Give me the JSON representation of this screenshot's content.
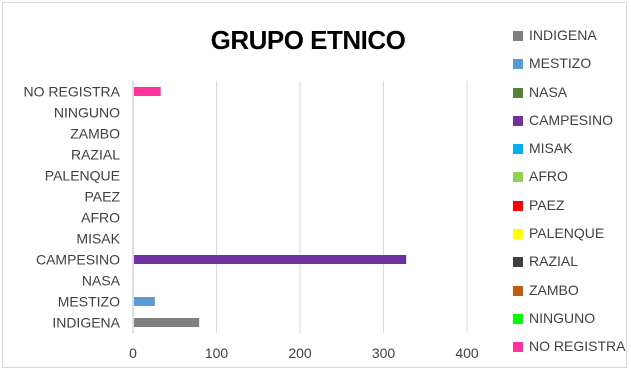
{
  "chart_data": {
    "type": "bar",
    "orientation": "horizontal",
    "title": "GRUPO ETNICO",
    "categories": [
      "INDIGENA",
      "MESTIZO",
      "NASA",
      "CAMPESINO",
      "MISAK",
      "AFRO",
      "PAEZ",
      "PALENQUE",
      "RAZIAL",
      "ZAMBO",
      "NINGUNO",
      "NO REGISTRA"
    ],
    "values": [
      78,
      25,
      0,
      326,
      0,
      0,
      0,
      0,
      0,
      0,
      0,
      32
    ],
    "colors": [
      "#808080",
      "#5b9bd5",
      "#548235",
      "#7030a0",
      "#00b0f0",
      "#92d050",
      "#ff0000",
      "#ffff00",
      "#404040",
      "#c55a11",
      "#00ff00",
      "#ff3399"
    ],
    "xlim": [
      0,
      400
    ],
    "xticks": [
      0,
      100,
      200,
      300,
      400
    ],
    "xtick_labels": [
      "0",
      "100",
      "200",
      "300",
      "400"
    ],
    "grid": "vertical",
    "legend_position": "right"
  },
  "legend": {
    "items": [
      {
        "label": "INDIGENA",
        "color": "#808080"
      },
      {
        "label": "MESTIZO",
        "color": "#5b9bd5"
      },
      {
        "label": "NASA",
        "color": "#548235"
      },
      {
        "label": "CAMPESINO",
        "color": "#7030a0"
      },
      {
        "label": "MISAK",
        "color": "#00b0f0"
      },
      {
        "label": "AFRO",
        "color": "#92d050"
      },
      {
        "label": "PAEZ",
        "color": "#ff0000"
      },
      {
        "label": "PALENQUE",
        "color": "#ffff00"
      },
      {
        "label": "RAZIAL",
        "color": "#404040"
      },
      {
        "label": "ZAMBO",
        "color": "#c55a11"
      },
      {
        "label": "NINGUNO",
        "color": "#00ff00"
      },
      {
        "label": "NO REGISTRA",
        "color": "#ff3399"
      }
    ]
  }
}
